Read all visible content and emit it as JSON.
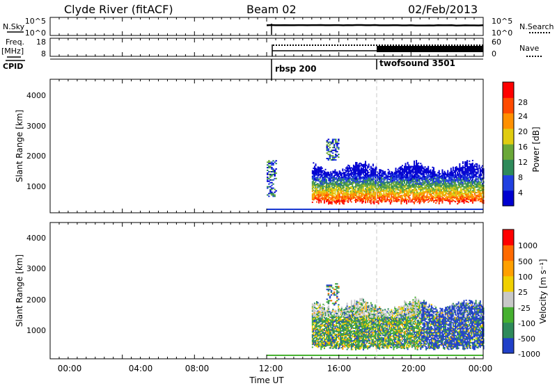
{
  "header": {
    "station": "Clyde River (fitACF)",
    "beam": "Beam 02",
    "date": "02/Feb/2013"
  },
  "noise_panel": {
    "left_label": "N.Sky",
    "right_label": "N.Search",
    "left_ticks": [
      "10^5",
      "10^0"
    ],
    "right_ticks": [
      "10^5",
      "10^0"
    ]
  },
  "freq_panel": {
    "left_label_1": "Freq.",
    "left_label_2": "[MHz]",
    "right_label": "Nave",
    "left_ticks": [
      "18",
      "8"
    ],
    "right_ticks": [
      "60",
      "0"
    ]
  },
  "cpid": {
    "label": "CPID",
    "modes": [
      {
        "name": "rbsp 200",
        "start": "12:00"
      },
      {
        "name": "twofsound 3501",
        "start": "18:00"
      }
    ]
  },
  "colors": {
    "power": [
      "#0000d0",
      "#2040e0",
      "#2e8a5a",
      "#6aa838",
      "#e0cc10",
      "#ff9000",
      "#ff4a00",
      "#ff0000"
    ],
    "velocity": [
      "#ff0000",
      "#ff6a00",
      "#ffa000",
      "#f0d000",
      "#c8c8c8",
      "#46b030",
      "#2e8a5a",
      "#2040c8"
    ]
  },
  "chart_data": [
    {
      "type": "heatmap",
      "name": "power-panel",
      "ylabel": "Slant Range [km]",
      "yticks": [
        "4000",
        "3000",
        "2000",
        "1000"
      ],
      "ylim": [
        180,
        4580
      ],
      "colorbar_label": "Power [dB]",
      "colorbar_ticks": [
        "28",
        "24",
        "20",
        "16",
        "12",
        "8",
        "4"
      ],
      "scale_range": [
        0,
        32
      ],
      "features": [
        {
          "label": "main echo band",
          "x": [
            14.5,
            24
          ],
          "y": [
            450,
            1550
          ]
        },
        {
          "label": "isolated echoes",
          "x": [
            12,
            12.5
          ],
          "y": [
            700,
            1900
          ]
        },
        {
          "label": "upper echoes",
          "x": [
            15.3,
            16
          ],
          "y": [
            1900,
            2600
          ]
        }
      ]
    },
    {
      "type": "heatmap",
      "name": "velocity-panel",
      "ylabel": "Slant Range [km]",
      "yticks": [
        "4000",
        "3000",
        "2000",
        "1000"
      ],
      "ylim": [
        180,
        4580
      ],
      "colorbar_label": "Velocity [m s⁻¹]",
      "colorbar_ticks": [
        "1000",
        "500",
        "100",
        "25",
        "-25",
        "-100",
        "-500",
        "-1000"
      ],
      "features": [
        {
          "label": "main echo band",
          "x": [
            14.5,
            24
          ],
          "y": [
            450,
            1800
          ]
        },
        {
          "label": "upper echoes",
          "x": [
            15.3,
            16
          ],
          "y": [
            1900,
            2600
          ]
        }
      ]
    }
  ],
  "xaxis": {
    "label": "Time UT",
    "ticks": [
      "00:00",
      "04:00",
      "08:00",
      "12:00",
      "16:00",
      "20:00",
      "00:00"
    ]
  }
}
